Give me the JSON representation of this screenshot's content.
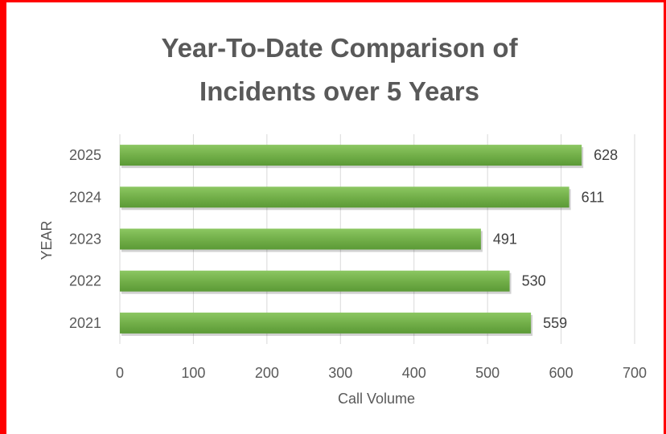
{
  "frame_color": "#ff0000",
  "chart_data": {
    "type": "bar",
    "orientation": "horizontal",
    "title_lines": [
      "Year-To-Date Comparison of",
      "Incidents over 5 Years"
    ],
    "title": "Year-To-Date Comparison of Incidents over 5 Years",
    "xlabel": "Call Volume",
    "ylabel": "YEAR",
    "categories": [
      "2021",
      "2022",
      "2023",
      "2024",
      "2025"
    ],
    "values": [
      559,
      530,
      491,
      611,
      628
    ],
    "xlim": [
      0,
      700
    ],
    "xticks": [
      0,
      100,
      200,
      300,
      400,
      500,
      600,
      700
    ],
    "data_labels": true,
    "grid": "vertical",
    "bar_color": "#70ad47",
    "bar_color_light": "#8cc762",
    "bar_color_dark": "#5b9a36",
    "grid_color": "#d9d9d9"
  }
}
